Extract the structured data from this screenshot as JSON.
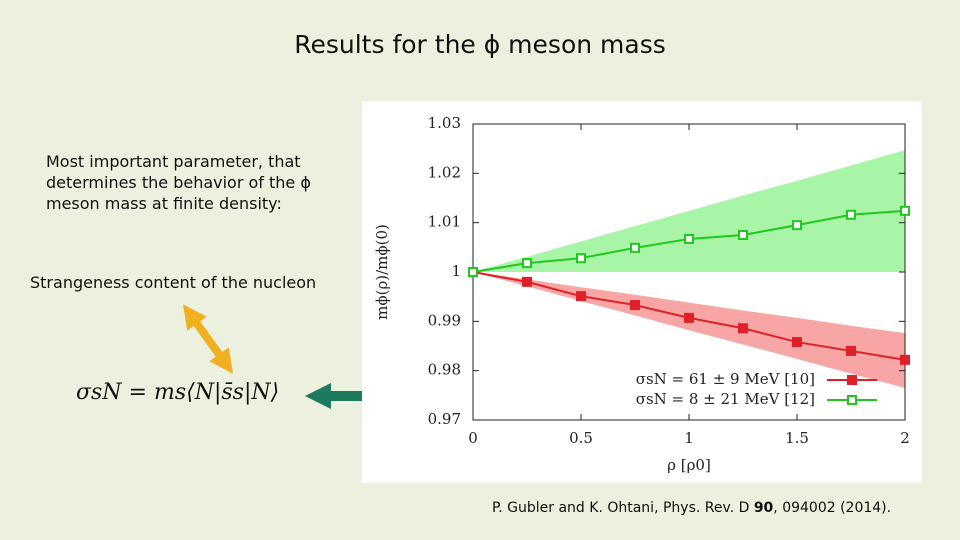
{
  "title": "Results for the ϕ meson mass",
  "paragraph": "Most important parameter, that determines the behavior of the ϕ meson mass at finite density:",
  "subheading": "Strangeness content of the nucleon",
  "formula": "σsN = ms⟨N|s̄s|N⟩",
  "citation": {
    "before": "P. Gubler and K. Ohtani, Phys. Rev. D",
    "volume": "90",
    "after": ", 094002 (2014)."
  },
  "chart_data": {
    "type": "line",
    "x_label": "ρ [ρ0]",
    "y_label": "mϕ(ρ)/mϕ(0)",
    "x": [
      0,
      0.25,
      0.5,
      0.75,
      1,
      1.25,
      1.5,
      1.75,
      2
    ],
    "xlim": [
      0,
      2
    ],
    "ylim": [
      0.97,
      1.03
    ],
    "xticks": [
      0,
      0.5,
      1,
      1.5,
      2
    ],
    "yticks": [
      0.97,
      0.98,
      0.99,
      1,
      1.01,
      1.02,
      1.03
    ],
    "legend": "lower right",
    "series": [
      {
        "name": "σsN = 61 ± 9 MeV [10]",
        "color": "#e02028",
        "band_color": "#f7a5a5",
        "marker": "filled",
        "values": [
          1.0,
          0.998,
          0.9951,
          0.9933,
          0.9907,
          0.9886,
          0.9858,
          0.984,
          0.9822
        ],
        "band_upper": [
          1.0,
          0.9985,
          0.9969,
          0.9954,
          0.9938,
          0.9922,
          0.9907,
          0.9891,
          0.9876
        ],
        "band_lower": [
          1.0,
          0.9971,
          0.9941,
          0.9912,
          0.9882,
          0.9853,
          0.9824,
          0.9794,
          0.9765
        ]
      },
      {
        "name": "σsN = 8 ± 21 MeV [12]",
        "color": "#1ec81e",
        "band_color": "#a8f5a8",
        "marker": "open",
        "values": [
          1.0,
          1.0018,
          1.0028,
          1.0049,
          1.0067,
          1.0075,
          1.0095,
          1.0116,
          1.0124
        ],
        "band_upper": [
          1.0,
          1.0031,
          1.0062,
          1.0093,
          1.0124,
          1.0155,
          1.0185,
          1.0216,
          1.0247
        ],
        "band_lower": [
          1.0,
          1.0,
          1.0,
          1.0,
          1.0,
          1.0,
          1.0,
          1.0,
          1.0
        ]
      }
    ]
  }
}
